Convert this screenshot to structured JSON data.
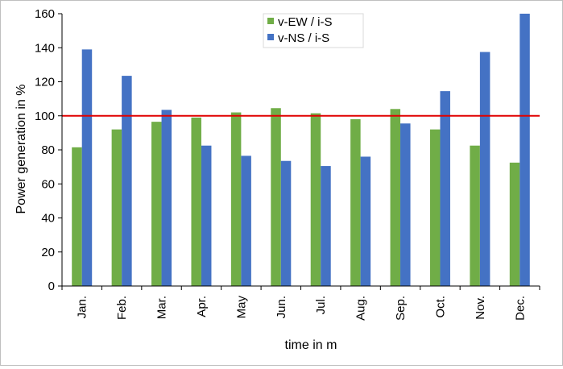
{
  "chart_data": {
    "type": "bar",
    "title": "",
    "xlabel": "time in m",
    "ylabel": "Power generation in %",
    "ylim": [
      0,
      160
    ],
    "yticks": [
      0,
      20,
      40,
      60,
      80,
      100,
      120,
      140,
      160
    ],
    "categories": [
      "Jan.",
      "Feb.",
      "Mar.",
      "Apr.",
      "May",
      "Jun.",
      "Jul.",
      "Aug.",
      "Sep.",
      "Oct.",
      "Nov.",
      "Dec."
    ],
    "series": [
      {
        "name": "v-EW / i-S",
        "color": "#70ad47",
        "values": [
          81.5,
          92,
          96.5,
          99,
          102,
          104.5,
          101.5,
          98,
          104,
          92,
          82.5,
          72.5
        ]
      },
      {
        "name": "v-NS / i-S",
        "color": "#4472c4",
        "values": [
          139,
          123.5,
          103.5,
          82.5,
          76.5,
          73.5,
          70.5,
          76,
          95.5,
          114.5,
          137.5,
          160
        ]
      }
    ],
    "reference_line": {
      "value": 100,
      "color": "#e00000"
    },
    "legend_position": "top-center",
    "grid": false
  }
}
